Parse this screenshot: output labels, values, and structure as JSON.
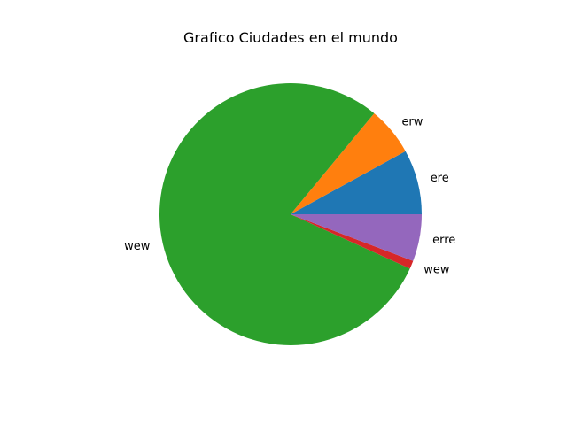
{
  "chart_data": {
    "type": "pie",
    "title": "Grafico Ciudades en el mundo",
    "start_angle": 0,
    "direction": "counterclockwise",
    "slices": [
      {
        "label": "ere",
        "value": 8.0,
        "color": "#1f77b4"
      },
      {
        "label": "erw",
        "value": 6.0,
        "color": "#ff7f0e"
      },
      {
        "label": "wew",
        "value": 79.2,
        "color": "#2ca02c"
      },
      {
        "label": "wew",
        "value": 1.0,
        "color": "#d62728"
      },
      {
        "label": "erre",
        "value": 5.8,
        "color": "#9467bd"
      }
    ]
  }
}
